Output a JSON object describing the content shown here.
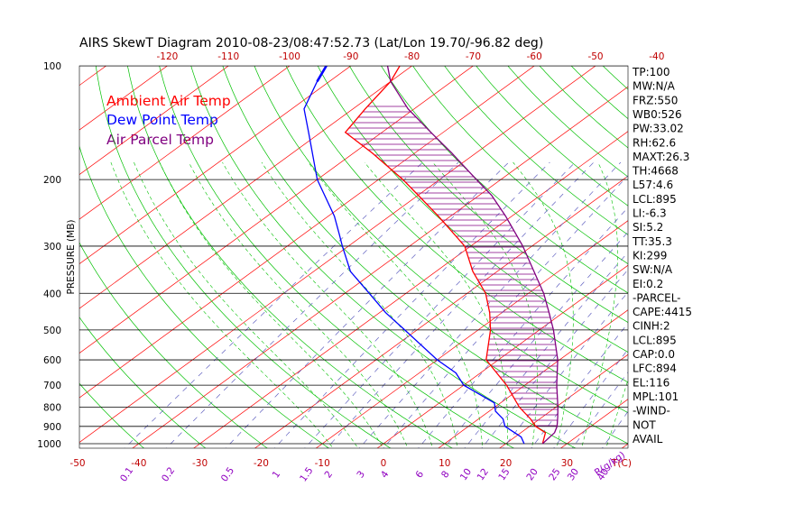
{
  "colors": {
    "isotherm": "#ff0000",
    "dry_adiabat": "#00c000",
    "moist_adiabat": "#00c000",
    "mixing_ratio": "#6060c0",
    "ambient": "#ff0000",
    "dewpoint": "#0000ff",
    "parcel": "#800080",
    "hatch": "#800080",
    "isobar": "#000000",
    "bottom_labels": "#c00000",
    "top_labels": "#c00000",
    "mixing_labels": "#9000c0"
  },
  "chart_data": {
    "type": "line",
    "title": "AIRS SkewT Diagram 2010-08-23/08:47:52.73 (Lat/Lon 19.70/-96.82 deg)",
    "ylabel": "PRESSURE (MB)",
    "y_scale": "log",
    "ylim": [
      1000,
      100
    ],
    "pressure_ticks": [
      "100",
      "200",
      "300",
      "400",
      "500",
      "600",
      "700",
      "800",
      "900",
      "1000"
    ],
    "pressure_levels": [
      100,
      200,
      300,
      400,
      500,
      600,
      700,
      800,
      900,
      1000
    ],
    "bottom_temp_ticks": [
      "-50",
      "-40",
      "-30",
      "-20",
      "-10",
      "0",
      "10",
      "20",
      "30"
    ],
    "bottom_temp_unit": "T(C)",
    "top_temp_ticks": [
      "-120",
      "-110",
      "-100",
      "-90",
      "-80",
      "-70",
      "-60",
      "-50",
      "-40"
    ],
    "mixing_ratio_ticks": [
      "0.1",
      "0.2",
      "0.5",
      "1",
      "1.5",
      "2",
      "3",
      "4",
      "6",
      "8",
      "10",
      "12",
      "15",
      "20",
      "25",
      "30",
      "40"
    ],
    "mixing_ratio_unit": "R(g/kg)",
    "legend": [
      "Ambient Air Temp",
      "Dew Point Temp",
      "Air Parcel Temp"
    ],
    "legend_placement": "top-left",
    "series": [
      {
        "name": "Ambient Air Temp",
        "points": [
          [
            1000,
            26
          ],
          [
            935,
            24
          ],
          [
            900,
            21
          ],
          [
            860,
            18.5
          ],
          [
            800,
            14
          ],
          [
            700,
            7
          ],
          [
            600,
            -2
          ],
          [
            500,
            -8
          ],
          [
            450,
            -12
          ],
          [
            400,
            -17
          ],
          [
            350,
            -24
          ],
          [
            300,
            -31
          ],
          [
            250,
            -42
          ],
          [
            220,
            -50
          ],
          [
            200,
            -56
          ],
          [
            170,
            -67
          ],
          [
            150,
            -76
          ],
          [
            130,
            -78
          ],
          [
            110,
            -80
          ],
          [
            100,
            -82
          ]
        ]
      },
      {
        "name": "Dew Point Temp",
        "points": [
          [
            1000,
            23
          ],
          [
            960,
            21
          ],
          [
            900,
            16
          ],
          [
            860,
            14
          ],
          [
            820,
            11
          ],
          [
            780,
            9
          ],
          [
            700,
            0
          ],
          [
            650,
            -4
          ],
          [
            600,
            -10
          ],
          [
            500,
            -22
          ],
          [
            450,
            -29
          ],
          [
            400,
            -36
          ],
          [
            350,
            -44
          ],
          [
            300,
            -51
          ],
          [
            280,
            -54
          ],
          [
            250,
            -59
          ],
          [
            200,
            -70
          ],
          [
            150,
            -82
          ],
          [
            130,
            -88
          ],
          [
            110,
            -92
          ],
          [
            100,
            -94
          ]
        ]
      },
      {
        "name": "Air Parcel Temp",
        "points": [
          [
            1000,
            26
          ],
          [
            935,
            25.5
          ],
          [
            900,
            24.5
          ],
          [
            850,
            22.5
          ],
          [
            800,
            20.3
          ],
          [
            700,
            15.2
          ],
          [
            600,
            9.7
          ],
          [
            500,
            2.3
          ],
          [
            450,
            -2.3
          ],
          [
            400,
            -7.5
          ],
          [
            350,
            -14
          ],
          [
            300,
            -21.5
          ],
          [
            250,
            -31
          ],
          [
            220,
            -38
          ],
          [
            200,
            -44
          ],
          [
            170,
            -54
          ],
          [
            150,
            -62
          ],
          [
            130,
            -71
          ],
          [
            110,
            -80
          ],
          [
            100,
            -84
          ]
        ]
      }
    ],
    "shading": "hatched area between Air Parcel Temp and Ambient Air Temp (CAPE)"
  },
  "indices": [
    "TP:100",
    "MW:N/A",
    "FRZ:550",
    "WB0:526",
    "PW:33.02",
    "RH:62.6",
    "MAXT:26.3",
    "TH:4668",
    "L57:4.6",
    "LCL:895",
    "LI:-6.3",
    "SI:5.2",
    "TT:35.3",
    "KI:299",
    "SW:N/A",
    "EI:0.2",
    "-PARCEL-",
    "CAPE:4415",
    "CINH:2",
    "LCL:895",
    "CAP:0.0",
    "LFC:894",
    "EL:116",
    "MPL:101",
    "-WIND-",
    "NOT",
    "AVAIL"
  ]
}
